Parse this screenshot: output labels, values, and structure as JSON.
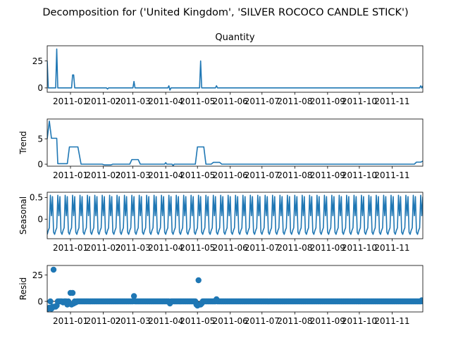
{
  "figure": {
    "suptitle": "Decomposition for ('United Kingdom', 'SILVER ROCOCO CANDLE STICK')",
    "line_color": "#1f77b4",
    "x_tick_labels": [
      "2011-01",
      "2011-02",
      "2011-03",
      "2011-04",
      "2011-05",
      "2011-06",
      "2011-07",
      "2011-08",
      "2011-09",
      "2011-10",
      "2011-11"
    ]
  },
  "chart_data": [
    {
      "type": "line",
      "title": "Quantity",
      "ylabel": "",
      "xlim": [
        "2010-12-10",
        "2011-11-30"
      ],
      "ylim": [
        -4,
        39
      ],
      "yticks": [
        0,
        25
      ],
      "points": [
        [
          "2010-12-10",
          25
        ],
        [
          "2010-12-11",
          0
        ],
        [
          "2010-12-18",
          0
        ],
        [
          "2010-12-19",
          36
        ],
        [
          "2010-12-20",
          0
        ],
        [
          "2011-01-02",
          0
        ],
        [
          "2011-01-03",
          12
        ],
        [
          "2011-01-04",
          12
        ],
        [
          "2011-01-05",
          0
        ],
        [
          "2011-02-04",
          0
        ],
        [
          "2011-02-05",
          -1
        ],
        [
          "2011-02-06",
          0
        ],
        [
          "2011-03-01",
          0
        ],
        [
          "2011-03-02",
          6
        ],
        [
          "2011-03-03",
          0
        ],
        [
          "2011-04-03",
          0
        ],
        [
          "2011-04-04",
          2
        ],
        [
          "2011-04-05",
          -2
        ],
        [
          "2011-04-06",
          0
        ],
        [
          "2011-05-03",
          0
        ],
        [
          "2011-05-04",
          25
        ],
        [
          "2011-05-05",
          0
        ],
        [
          "2011-05-18",
          0
        ],
        [
          "2011-05-19",
          2
        ],
        [
          "2011-05-20",
          0
        ],
        [
          "2011-11-27",
          0
        ],
        [
          "2011-11-28",
          2
        ],
        [
          "2011-11-29",
          0
        ],
        [
          "2011-11-30",
          2
        ]
      ]
    },
    {
      "type": "line",
      "title": "",
      "ylabel": "Trend",
      "xlim": [
        "2010-12-10",
        "2011-11-30"
      ],
      "ylim": [
        -0.4,
        8.9
      ],
      "yticks": [
        0,
        5
      ],
      "points": [
        [
          "2010-12-10",
          5
        ],
        [
          "2010-12-12",
          8.5
        ],
        [
          "2010-12-14",
          5.1
        ],
        [
          "2010-12-19",
          5.1
        ],
        [
          "2010-12-20",
          0.1
        ],
        [
          "2010-12-29",
          0.1
        ],
        [
          "2010-12-31",
          3.4
        ],
        [
          "2011-01-08",
          3.4
        ],
        [
          "2011-01-11",
          0
        ],
        [
          "2011-01-31",
          0
        ],
        [
          "2011-02-02",
          -0.15
        ],
        [
          "2011-02-08",
          -0.15
        ],
        [
          "2011-02-10",
          0
        ],
        [
          "2011-02-26",
          0
        ],
        [
          "2011-02-28",
          0.9
        ],
        [
          "2011-03-06",
          0.9
        ],
        [
          "2011-03-08",
          0
        ],
        [
          "2011-03-31",
          0
        ],
        [
          "2011-04-01",
          0.3
        ],
        [
          "2011-04-02",
          0
        ],
        [
          "2011-04-07",
          0
        ],
        [
          "2011-04-08",
          -0.3
        ],
        [
          "2011-04-09",
          0
        ],
        [
          "2011-04-29",
          0
        ],
        [
          "2011-05-01",
          3.4
        ],
        [
          "2011-05-07",
          3.4
        ],
        [
          "2011-05-09",
          0
        ],
        [
          "2011-05-14",
          0
        ],
        [
          "2011-05-16",
          0.35
        ],
        [
          "2011-05-22",
          0.35
        ],
        [
          "2011-05-24",
          0
        ],
        [
          "2011-11-22",
          0
        ],
        [
          "2011-11-24",
          0.4
        ],
        [
          "2011-11-28",
          0.4
        ],
        [
          "2011-11-30",
          0.6
        ]
      ]
    },
    {
      "type": "line",
      "title": "",
      "ylabel": "Seasonal",
      "xlim": [
        "2010-12-10",
        "2011-11-30"
      ],
      "ylim": [
        -0.45,
        0.62
      ],
      "yticks": [
        0.0,
        0.5
      ],
      "period_days": 7,
      "cycle_start": "2010-12-10",
      "weekly_pattern": [
        -0.35,
        -0.26,
        -0.2,
        0.55,
        0.08,
        0.52,
        -0.3
      ]
    },
    {
      "type": "scatter",
      "title": "",
      "ylabel": "Resid",
      "xlim": [
        "2010-12-10",
        "2011-11-30"
      ],
      "ylim": [
        -10,
        34
      ],
      "yticks": [
        0,
        25
      ],
      "baseline": 0,
      "points": [
        [
          "2010-12-10",
          -7
        ],
        [
          "2010-12-11",
          -7
        ],
        [
          "2010-12-12",
          -6
        ],
        [
          "2010-12-14",
          -7
        ],
        [
          "2010-12-15",
          -5
        ],
        [
          "2010-12-16",
          30
        ],
        [
          "2010-12-17",
          -5
        ],
        [
          "2010-12-18",
          -5
        ],
        [
          "2010-12-19",
          -4
        ],
        [
          "2010-12-21",
          0
        ],
        [
          "2010-12-23",
          0
        ],
        [
          "2010-12-25",
          -1
        ],
        [
          "2010-12-27",
          0
        ],
        [
          "2010-12-29",
          -3
        ],
        [
          "2010-12-31",
          -2
        ],
        [
          "2011-01-01",
          8
        ],
        [
          "2011-01-02",
          -3
        ],
        [
          "2011-01-03",
          8
        ],
        [
          "2011-01-04",
          -2
        ],
        [
          "2011-01-06",
          -1
        ],
        [
          "2011-03-02",
          5
        ],
        [
          "2011-04-05",
          -2
        ],
        [
          "2011-04-30",
          -3
        ],
        [
          "2011-05-01",
          -4
        ],
        [
          "2011-05-02",
          20
        ],
        [
          "2011-05-03",
          -3
        ],
        [
          "2011-05-04",
          -3
        ],
        [
          "2011-05-05",
          -2
        ],
        [
          "2011-05-19",
          2
        ],
        [
          "2011-11-29",
          1
        ]
      ]
    }
  ]
}
